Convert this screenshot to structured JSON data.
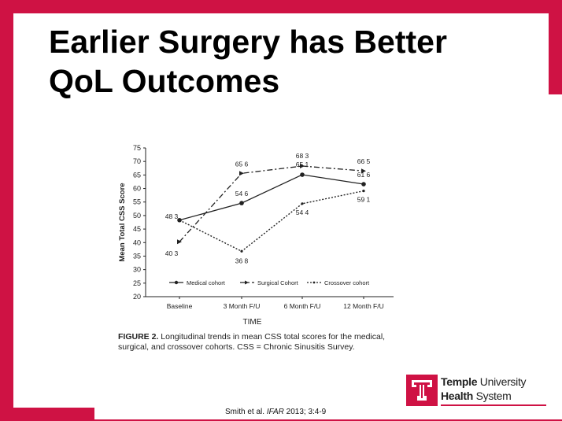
{
  "slide": {
    "title_line1": "Earlier Surgery has Better",
    "title_line2": "QoL Outcomes",
    "caption_label": "FIGURE 2.",
    "caption_text": "Longitudinal trends in mean CSS total scores for the medical, surgical, and crossover cohorts. CSS = Chronic Sinusitis Survey.",
    "citation_author": "Smith et al.",
    "citation_journal": "IFAR",
    "citation_rest": "2013;  3:4-9",
    "logo_word1": "Temple",
    "logo_word2": "University",
    "logo_word3": "Health",
    "logo_word4": "System",
    "brand_color": "#cf1244"
  },
  "chart_data": {
    "type": "line",
    "xlabel": "TIME",
    "ylabel": "Mean Total CSS Score",
    "ylim": [
      20,
      75
    ],
    "yticks": [
      20,
      25,
      30,
      35,
      40,
      45,
      50,
      55,
      60,
      65,
      70,
      75
    ],
    "categories": [
      "Baseline",
      "3 Month F/U",
      "6 Month F/U",
      "12 Month F/U"
    ],
    "legend_position": "bottom-inside",
    "series": [
      {
        "name": "Medical cohort",
        "style": "solid",
        "marker": "dot",
        "values": [
          48.3,
          54.6,
          65.1,
          61.6
        ],
        "labels": [
          "48 3",
          "54 6",
          "65 1",
          "61 6"
        ]
      },
      {
        "name": "Surgical Cohort",
        "style": "dash-dot",
        "marker": "arrow",
        "values": [
          40.3,
          65.6,
          68.3,
          66.5
        ],
        "labels": [
          "40 3",
          "65 6",
          "68 3",
          "66 5"
        ]
      },
      {
        "name": "Crossover cohort",
        "style": "dotted",
        "marker": "small",
        "values": [
          48.3,
          36.8,
          54.4,
          59.1
        ],
        "labels": [
          "",
          "36 8",
          "54 4",
          "59 1"
        ]
      }
    ]
  }
}
